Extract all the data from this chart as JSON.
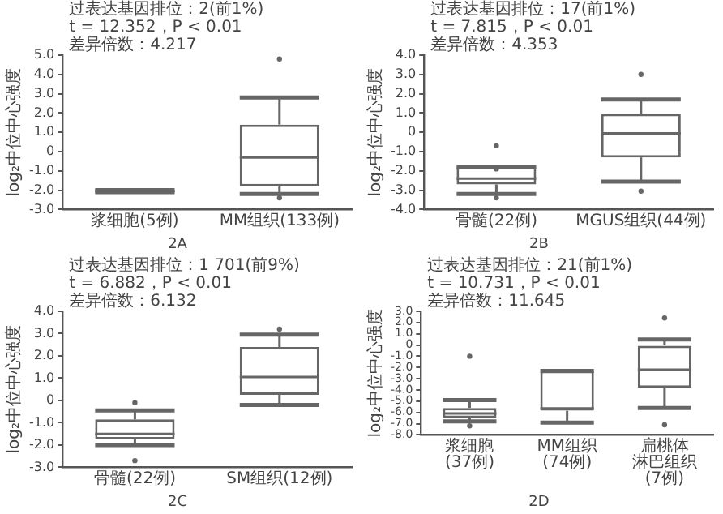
{
  "chart_data": [
    {
      "type": "box",
      "title": "2A",
      "ylabel": "log₂中位中心强度",
      "color": "#666666",
      "grid": false,
      "legend": false,
      "categories": [
        "浆细胞(5例)",
        "MM组织(133例)"
      ],
      "boxes": [
        {
          "low": -2.1,
          "q1": -2.1,
          "median": -2.05,
          "q3": -2.0,
          "high": -2.0
        },
        {
          "low": -2.2,
          "q1": -1.8,
          "median": -0.3,
          "q3": 1.4,
          "high": 2.8,
          "outliers": [
            4.8,
            -2.4
          ]
        }
      ],
      "ylim": [
        -3,
        5
      ],
      "yticks": [
        {
          "value": -3,
          "label": "-3.0"
        },
        {
          "value": -2,
          "label": "-2.0"
        },
        {
          "value": -1,
          "label": "-1.0"
        },
        {
          "value": 0,
          "label": "0"
        },
        {
          "value": 1,
          "label": "1.0"
        },
        {
          "value": 2,
          "label": "2.0"
        },
        {
          "value": 3,
          "label": "3.0"
        },
        {
          "value": 4,
          "label": "4.0"
        },
        {
          "value": 5,
          "label": "5.0"
        }
      ],
      "annotations": [
        "过表达基因排位：2(前1%)",
        "t = 12.352，P < 0.01",
        "差异倍数：4.217"
      ]
    },
    {
      "type": "box",
      "title": "2B",
      "ylabel": "log₂中位中心强度",
      "color": "#666666",
      "grid": false,
      "legend": false,
      "categories": [
        "骨髓(22例)",
        "MGUS组织(44例)"
      ],
      "boxes": [
        {
          "low": -3.2,
          "q1": -2.7,
          "median": -2.4,
          "q3": -1.8,
          "high": -1.8,
          "outliers": [
            -0.7,
            -1.9,
            -3.4
          ]
        },
        {
          "low": -2.55,
          "q1": -1.3,
          "median": -0.05,
          "q3": 0.95,
          "high": 1.7,
          "outliers": [
            3.0,
            -3.05
          ]
        }
      ],
      "ylim": [
        -4,
        4
      ],
      "yticks": [
        {
          "value": -4,
          "label": "-4.0"
        },
        {
          "value": -3,
          "label": "-3.0"
        },
        {
          "value": -2,
          "label": "-2.0"
        },
        {
          "value": -1,
          "label": "-1.0"
        },
        {
          "value": 0,
          "label": "0"
        },
        {
          "value": 1,
          "label": "1.0"
        },
        {
          "value": 2,
          "label": "2.0"
        },
        {
          "value": 3,
          "label": "3.0"
        },
        {
          "value": 4,
          "label": "4.0"
        }
      ],
      "annotations": [
        "过表达基因排位：17(前1%)",
        "t = 7.815，P < 0.01",
        "差异倍数：4.353"
      ]
    },
    {
      "type": "box",
      "title": "2C",
      "ylabel": "log₂中位中心强度",
      "color": "#666666",
      "grid": false,
      "legend": false,
      "categories": [
        "骨髓(22例)",
        "SM组织(12例)"
      ],
      "boxes": [
        {
          "low": -2.0,
          "q1": -1.75,
          "median": -1.5,
          "q3": -0.85,
          "high": -0.45,
          "outliers": [
            -0.1,
            -2.7
          ]
        },
        {
          "low": -0.2,
          "q1": 0.25,
          "median": 1.05,
          "q3": 2.4,
          "high": 2.95,
          "outliers": [
            3.2
          ]
        }
      ],
      "ylim": [
        -3,
        4
      ],
      "yticks": [
        {
          "value": -3,
          "label": "-3.0"
        },
        {
          "value": -2,
          "label": "-2.0"
        },
        {
          "value": -1,
          "label": "-1.0"
        },
        {
          "value": 0,
          "label": "0"
        },
        {
          "value": 1,
          "label": "1.0"
        },
        {
          "value": 2,
          "label": "2.0"
        },
        {
          "value": 3,
          "label": "3.0"
        },
        {
          "value": 4,
          "label": "4.0"
        }
      ],
      "annotations": [
        "过表达基因排位：1 701(前9%)",
        "t = 6.882，P < 0.01",
        "差异倍数：6.132"
      ]
    },
    {
      "type": "box",
      "title": "2D",
      "ylabel": "log₂中位中心强度",
      "color": "#666666",
      "grid": false,
      "legend": false,
      "categories": [
        "浆细胞(37例)",
        "MM组织(74例)",
        "扁桃体淋巴组织(7例)"
      ],
      "boxes": [
        {
          "low": -6.8,
          "q1": -6.5,
          "median": -6.1,
          "q3": -5.6,
          "high": -4.9,
          "outliers": [
            -1.0,
            -7.2
          ]
        },
        {
          "low": -6.9,
          "q1": -5.85,
          "median": -5.65,
          "q3": -2.3,
          "high": -2.3
        },
        {
          "low": -5.6,
          "q1": -3.8,
          "median": -2.2,
          "q3": 0,
          "high": 0.5,
          "outliers": [
            2.4,
            -7.1
          ]
        }
      ],
      "ylim": [
        -8,
        3
      ],
      "yticks": [
        {
          "value": -8,
          "label": "-8.0"
        },
        {
          "value": -7,
          "label": "-7.0"
        },
        {
          "value": -6,
          "label": "-6.0"
        },
        {
          "value": -5,
          "label": "-5.0"
        },
        {
          "value": -4,
          "label": "-4.0"
        },
        {
          "value": -3,
          "label": "-3.0"
        },
        {
          "value": -2,
          "label": "-2.0"
        },
        {
          "value": -1,
          "label": "-1.0"
        },
        {
          "value": 0,
          "label": "0"
        },
        {
          "value": 1,
          "label": "1.0"
        },
        {
          "value": 2,
          "label": "2.0"
        },
        {
          "value": 3,
          "label": "3.0"
        }
      ],
      "annotations": [
        "过表达基因排位：21(前1%)",
        "t = 10.731，P < 0.01",
        "差异倍数：11.645"
      ]
    }
  ]
}
